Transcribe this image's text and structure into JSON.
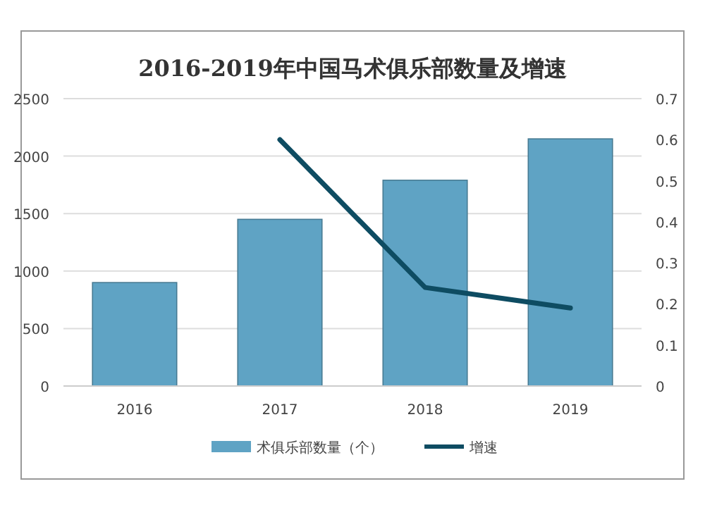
{
  "chart_data": {
    "type": "bar",
    "title": "2016-2019年中国马术俱乐部数量及增速",
    "categories": [
      "2016",
      "2017",
      "2018",
      "2019"
    ],
    "series": [
      {
        "name": "术俱乐部数量（个）",
        "color": "#5fa3c4",
        "values": [
          900,
          1450,
          1790,
          2150
        ]
      },
      {
        "name": "增速",
        "type": "line",
        "axis": "y2",
        "color": "#0e4c62",
        "values": [
          null,
          0.6,
          0.24,
          0.19
        ]
      }
    ],
    "ylim": [
      0,
      2500
    ],
    "yticks": [
      0,
      500,
      1000,
      1500,
      2000,
      2500
    ],
    "y2lim": [
      0,
      0.7
    ],
    "y2ticks": [
      0,
      0.1,
      0.2,
      0.3,
      0.4,
      0.5,
      0.6,
      0.7
    ],
    "grid": "y",
    "legend": "bottom",
    "marker": "none"
  }
}
